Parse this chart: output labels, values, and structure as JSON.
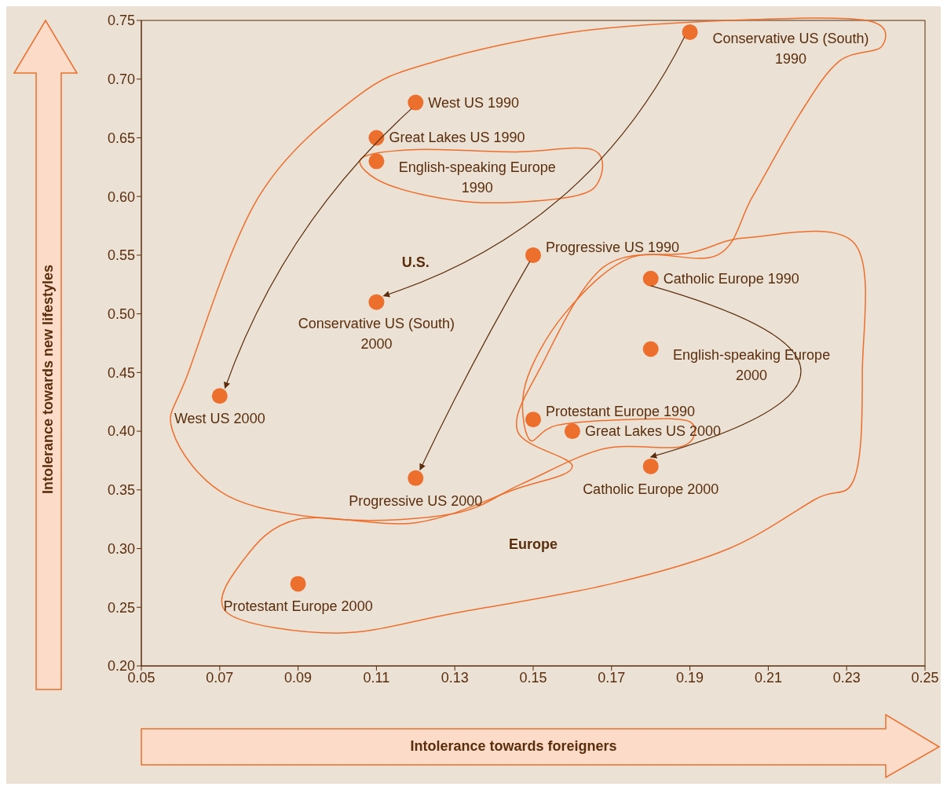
{
  "chart_data": {
    "type": "scatter",
    "xlabel": "Intolerance towards foreigners",
    "ylabel": "Intolerance towards new lifestyles",
    "x": [
      0.12,
      0.11,
      0.11,
      0.19,
      0.15,
      0.18,
      0.11,
      0.18,
      0.07,
      0.15,
      0.16,
      0.18,
      0.12,
      0.09
    ],
    "values": [
      0.68,
      0.65,
      0.63,
      0.74,
      0.55,
      0.53,
      0.51,
      0.47,
      0.43,
      0.41,
      0.4,
      0.37,
      0.36,
      0.27
    ],
    "color": "#ec6f2d",
    "marker": "circle",
    "xlim": [
      0.05,
      0.25
    ],
    "xticks": [
      {
        "value": 0.05,
        "label": "0.05"
      },
      {
        "value": 0.07,
        "label": "0.07"
      },
      {
        "value": 0.09,
        "label": "0.09"
      },
      {
        "value": 0.11,
        "label": "0.11"
      },
      {
        "value": 0.13,
        "label": "0.13"
      },
      {
        "value": 0.15,
        "label": "0.15"
      },
      {
        "value": 0.17,
        "label": "0.17"
      },
      {
        "value": 0.19,
        "label": "0.19"
      },
      {
        "value": 0.21,
        "label": "0.21"
      },
      {
        "value": 0.23,
        "label": "0.23"
      },
      {
        "value": 0.25,
        "label": "0.25"
      }
    ],
    "ylim": [
      0.2,
      0.75
    ],
    "yticks": [
      {
        "value": 0.2,
        "label": "0.20"
      },
      {
        "value": 0.25,
        "label": "0.25"
      },
      {
        "value": 0.3,
        "label": "0.30"
      },
      {
        "value": 0.35,
        "label": "0.35"
      },
      {
        "value": 0.4,
        "label": "0.40"
      },
      {
        "value": 0.45,
        "label": "0.45"
      },
      {
        "value": 0.5,
        "label": "0.50"
      },
      {
        "value": 0.55,
        "label": "0.55"
      },
      {
        "value": 0.6,
        "label": "0.60"
      },
      {
        "value": 0.65,
        "label": "0.65"
      },
      {
        "value": 0.7,
        "label": "0.70"
      },
      {
        "value": 0.75,
        "label": "0.75"
      }
    ],
    "grid": false,
    "legend": false,
    "annotations": [
      {
        "text": "West US 1990",
        "x": 0.12,
        "y": 0.68
      },
      {
        "text": "Great Lakes US 1990",
        "x": 0.11,
        "y": 0.65
      },
      {
        "text": "English-speaking Europe 1990",
        "x": 0.11,
        "y": 0.63
      },
      {
        "text": "Conservative US (South) 1990",
        "x": 0.19,
        "y": 0.74
      },
      {
        "text": "Progressive US 1990",
        "x": 0.15,
        "y": 0.55
      },
      {
        "text": "Catholic Europe 1990",
        "x": 0.18,
        "y": 0.53
      },
      {
        "text": "Conservative US (South) 2000",
        "x": 0.11,
        "y": 0.51
      },
      {
        "text": "English-speaking Europe 2000",
        "x": 0.18,
        "y": 0.47
      },
      {
        "text": "West US 2000",
        "x": 0.07,
        "y": 0.43
      },
      {
        "text": "Protestant Europe 1990",
        "x": 0.15,
        "y": 0.41
      },
      {
        "text": "Great Lakes US 2000",
        "x": 0.16,
        "y": 0.4
      },
      {
        "text": "Catholic Europe 2000",
        "x": 0.18,
        "y": 0.37
      },
      {
        "text": "Progressive US 2000",
        "x": 0.12,
        "y": 0.36
      },
      {
        "text": "Protestant Europe 2000",
        "x": 0.09,
        "y": 0.27
      },
      "U.S.",
      "Europe"
    ]
  }
}
